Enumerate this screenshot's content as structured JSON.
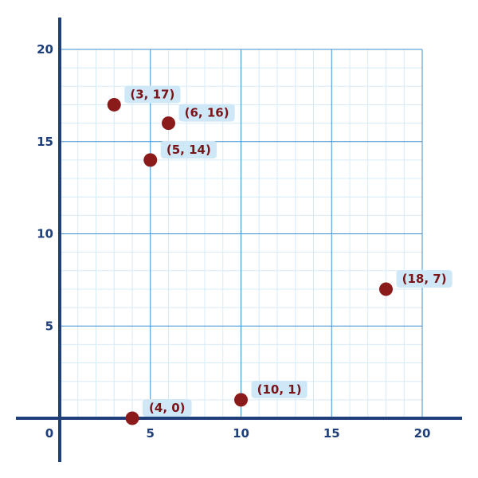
{
  "chart_data": {
    "type": "scatter",
    "title": "",
    "xlabel": "",
    "ylabel": "",
    "xlim": [
      0,
      20
    ],
    "ylim": [
      0,
      20
    ],
    "x_ticks": [
      "0",
      "5",
      "10",
      "15",
      "20"
    ],
    "y_ticks": [
      "5",
      "10",
      "15",
      "20"
    ],
    "grid": true,
    "points": [
      {
        "x": 3,
        "y": 17,
        "label": "(3, 17)"
      },
      {
        "x": 6,
        "y": 16,
        "label": "(6, 16)"
      },
      {
        "x": 5,
        "y": 14,
        "label": "(5, 14)"
      },
      {
        "x": 18,
        "y": 7,
        "label": "(18, 7)"
      },
      {
        "x": 10,
        "y": 1,
        "label": "(10, 1)"
      },
      {
        "x": 4,
        "y": 0,
        "label": "(4, 0)"
      }
    ],
    "colors": {
      "axis": "#1f3f7a",
      "major_grid": "#3f8fcf",
      "minor_grid": "#d6ebf8",
      "point": "#8b1a1a",
      "label_bg": "#cfe8f7",
      "label_text": "#7a1418"
    }
  }
}
